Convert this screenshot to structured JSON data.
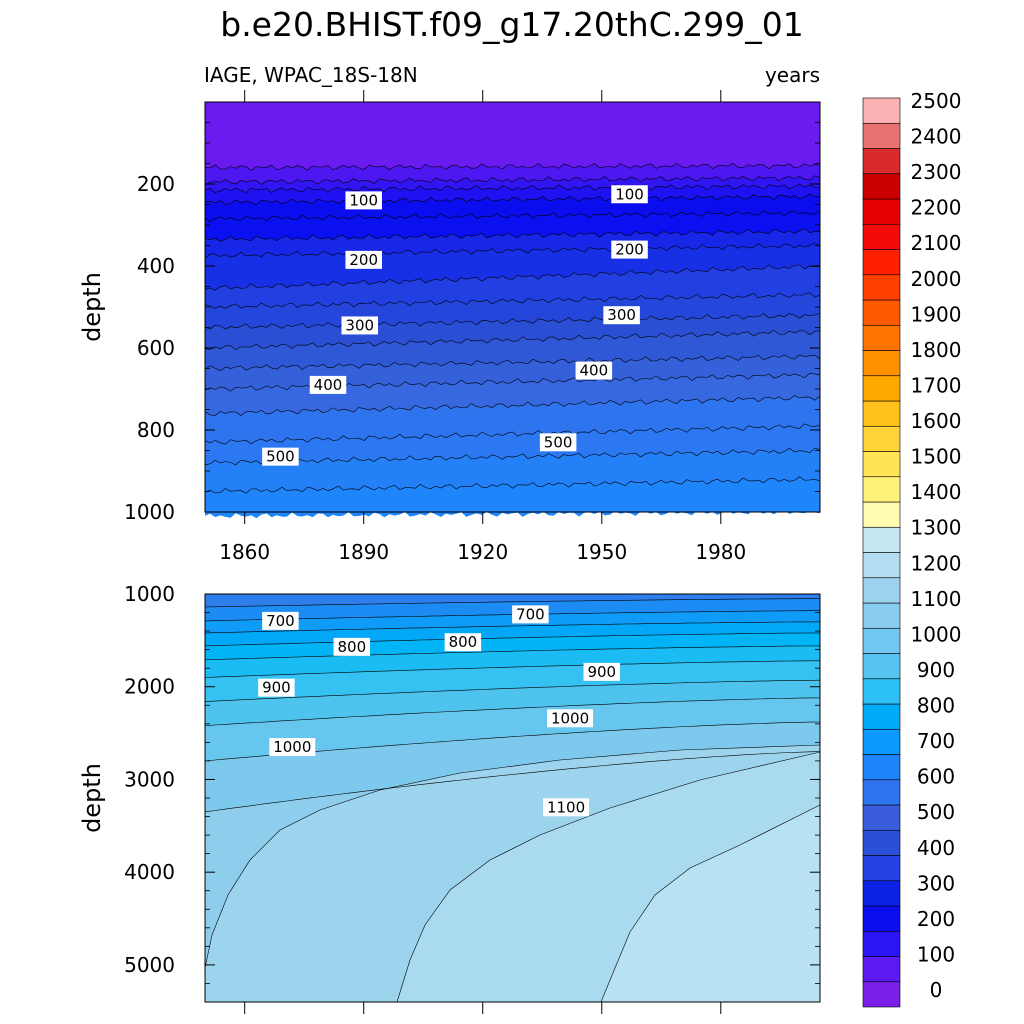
{
  "chart_data": {
    "type": "contour",
    "title": "b.e20.BHIST.f09_g17.20thC.299_01",
    "left_subtitle": "IAGE, WPAC_18S-18N",
    "right_subtitle": "years",
    "xlabel": "",
    "x_ticks": [
      1860,
      1890,
      1920,
      1950,
      1980
    ],
    "xlim": [
      1850,
      2005
    ],
    "colorbar": {
      "levels": [
        0,
        100,
        200,
        300,
        400,
        500,
        600,
        700,
        800,
        900,
        1000,
        1100,
        1200,
        1300,
        1400,
        1500,
        1600,
        1700,
        1800,
        1900,
        2000,
        2100,
        2200,
        2300,
        2400,
        2500
      ],
      "colors": [
        "#7B1FE8",
        "#5A1AF0",
        "#2D14F5",
        "#0B0EEE",
        "#0A22E6",
        "#2442E4",
        "#2B4FD8",
        "#3A5EDB",
        "#2E74EE",
        "#1E84FA",
        "#0D98FE",
        "#00ABF8",
        "#2DC0F5",
        "#55C4F0",
        "#70C7F0",
        "#88CCF0",
        "#9DD3EE",
        "#B2DDF0",
        "#C6E6F3",
        "#FFFCB0",
        "#FFF27A",
        "#FFE454",
        "#FFD438",
        "#FFC11A",
        "#FFA800",
        "#FF9000",
        "#FF7300",
        "#FF5A00",
        "#FF4000",
        "#FF2000",
        "#F50A0A",
        "#E60000",
        "#CC0000",
        "#D92B2B",
        "#E87272",
        "#FCB2B2"
      ]
    },
    "panels": [
      {
        "name": "upper-ocean",
        "ylabel": "depth",
        "ylim": [
          0,
          1000
        ],
        "y_ticks": [
          200,
          400,
          600,
          800,
          1000
        ],
        "contour_labels": [
          {
            "text": "100",
            "year": 1890,
            "depth": 240
          },
          {
            "text": "100",
            "year": 1957,
            "depth": 225
          },
          {
            "text": "200",
            "year": 1890,
            "depth": 385
          },
          {
            "text": "200",
            "year": 1957,
            "depth": 360
          },
          {
            "text": "300",
            "year": 1889,
            "depth": 545
          },
          {
            "text": "300",
            "year": 1955,
            "depth": 520
          },
          {
            "text": "400",
            "year": 1881,
            "depth": 690
          },
          {
            "text": "400",
            "year": 1948,
            "depth": 655
          },
          {
            "text": "500",
            "year": 1869,
            "depth": 865
          },
          {
            "text": "500",
            "year": 1939,
            "depth": 830
          }
        ]
      },
      {
        "name": "deep-ocean",
        "ylabel": "depth",
        "ylim": [
          1000,
          5400
        ],
        "y_ticks": [
          1000,
          2000,
          3000,
          4000,
          5000
        ],
        "contour_labels": [
          {
            "text": "700",
            "year": 1869,
            "depth": 1290
          },
          {
            "text": "700",
            "year": 1932,
            "depth": 1220
          },
          {
            "text": "800",
            "year": 1887,
            "depth": 1570
          },
          {
            "text": "800",
            "year": 1915,
            "depth": 1520
          },
          {
            "text": "900",
            "year": 1868,
            "depth": 2010
          },
          {
            "text": "900",
            "year": 1950,
            "depth": 1840
          },
          {
            "text": "1000",
            "year": 1872,
            "depth": 2650
          },
          {
            "text": "1000",
            "year": 1942,
            "depth": 2340
          },
          {
            "text": "1100",
            "year": 1941,
            "depth": 3300
          }
        ]
      }
    ]
  }
}
